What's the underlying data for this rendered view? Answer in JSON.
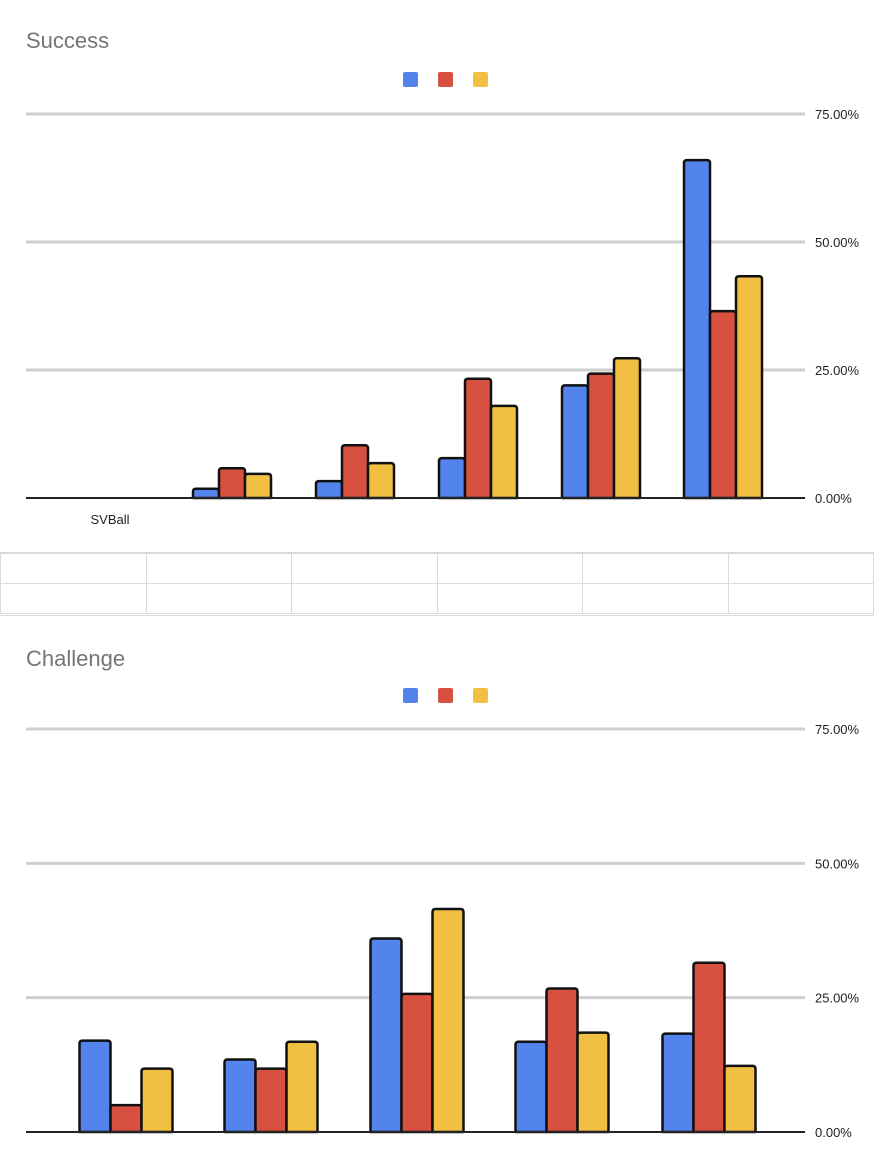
{
  "chart_data": [
    {
      "type": "bar",
      "title": "Success",
      "categories": [
        "SVBall",
        "",
        "",
        "",
        "",
        ""
      ],
      "series": [
        {
          "name": "",
          "color": "#5383EC",
          "values": [
            0,
            1.8,
            3.3,
            7.8,
            22,
            66
          ]
        },
        {
          "name": "",
          "color": "#D85140",
          "values": [
            0,
            5.8,
            10.3,
            23.3,
            24.3,
            36.5
          ]
        },
        {
          "name": "",
          "color": "#F1BF42",
          "values": [
            0,
            4.7,
            6.8,
            18,
            27.3,
            43.3
          ]
        }
      ],
      "ylim": [
        0,
        75
      ],
      "yticks": [
        "0.00%",
        "25.00%",
        "50.00%",
        "75.00%"
      ],
      "xlabel": "",
      "ylabel": "",
      "legend": "top-center",
      "grid": true
    },
    {
      "type": "bar",
      "title": "Challenge",
      "categories": [
        "",
        "",
        "",
        "",
        ""
      ],
      "series": [
        {
          "name": "",
          "color": "#5383EC",
          "values": [
            17,
            13.5,
            36,
            16.8,
            18.3
          ]
        },
        {
          "name": "",
          "color": "#D85140",
          "values": [
            5,
            11.8,
            25.7,
            26.7,
            31.5
          ]
        },
        {
          "name": "",
          "color": "#F1BF42",
          "values": [
            11.8,
            16.8,
            41.5,
            18.5,
            12.3
          ]
        }
      ],
      "ylim": [
        0,
        75
      ],
      "yticks": [
        "0.00%",
        "25.00%",
        "50.00%",
        "75.00%"
      ],
      "xlabel": "",
      "ylabel": "",
      "legend": "top-center",
      "grid": true
    }
  ]
}
